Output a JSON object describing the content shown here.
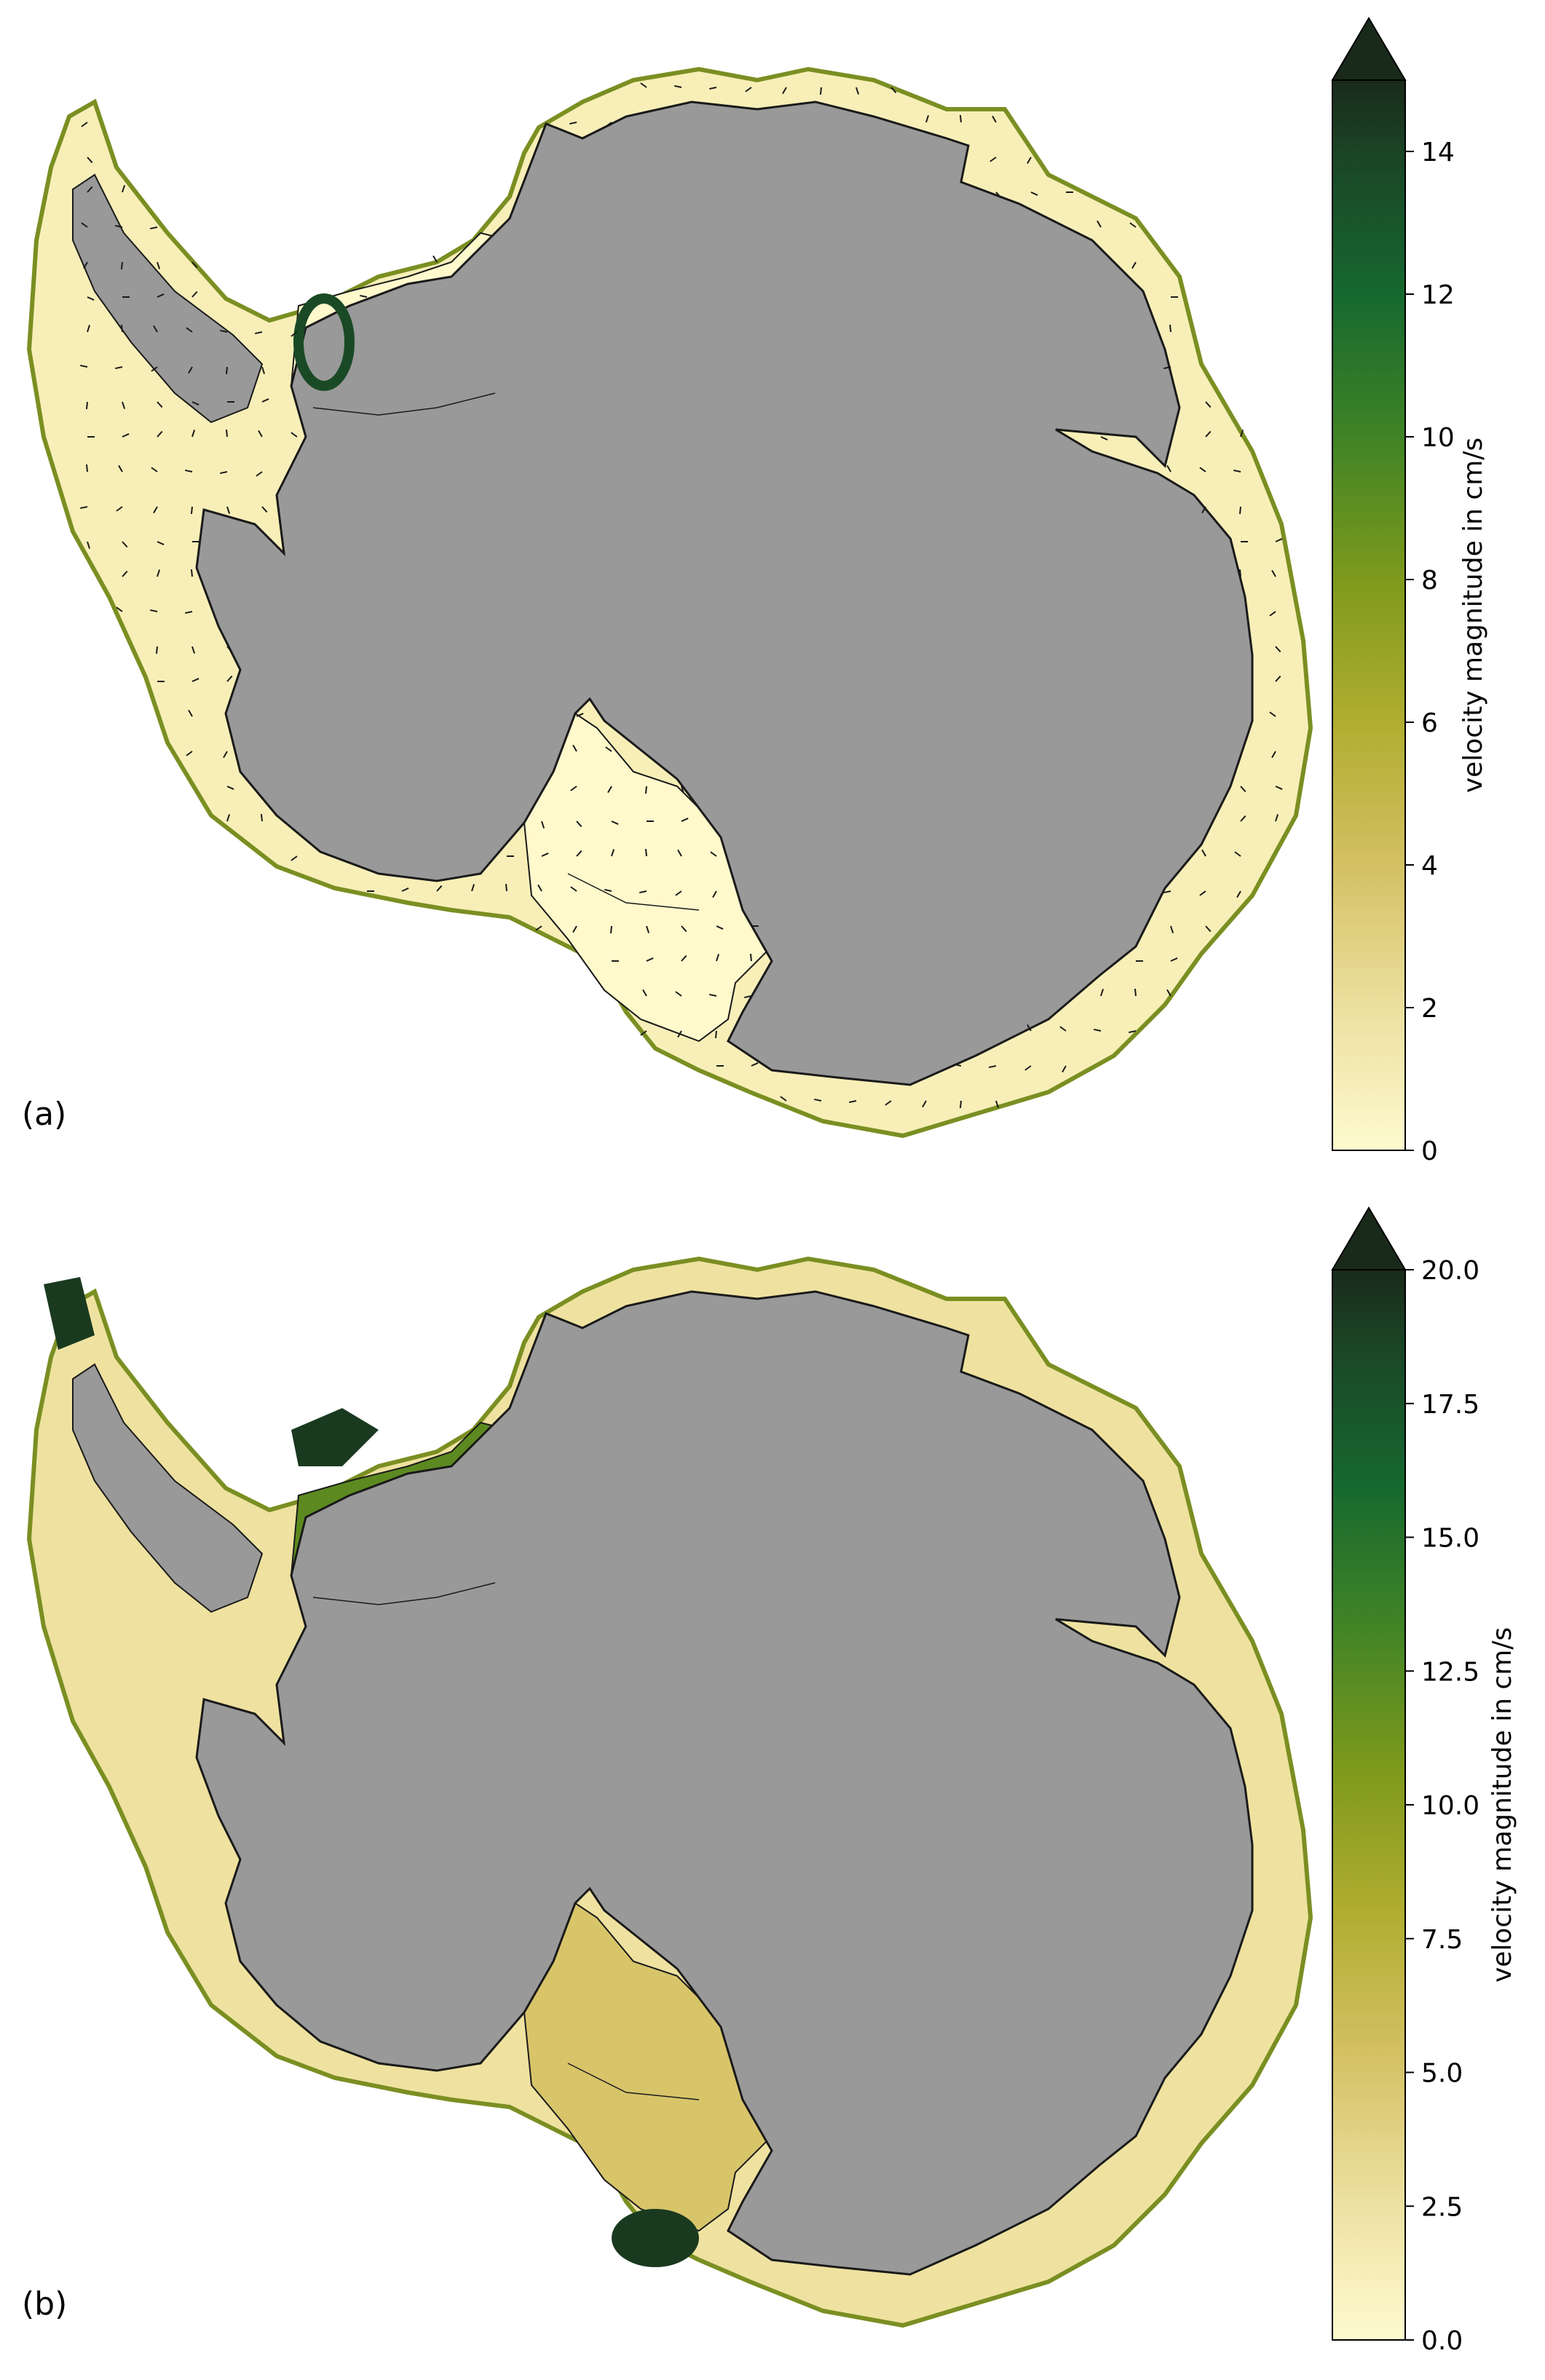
{
  "panels": [
    {
      "label": "(a)",
      "colorbar": {
        "label": "velocity magnitude in cm/s",
        "min": 0,
        "max": 15,
        "ticks": [
          "0",
          "2",
          "4",
          "6",
          "8",
          "10",
          "12",
          "14"
        ],
        "tick_values": [
          0,
          2,
          4,
          6,
          8,
          10,
          12,
          14
        ],
        "extend": "max"
      },
      "shows_quiver_arrows": true
    },
    {
      "label": "(b)",
      "colorbar": {
        "label": "velocity magnitude in cm/s",
        "min": 0,
        "max": 20,
        "ticks": [
          "0.0",
          "2.5",
          "5.0",
          "7.5",
          "10.0",
          "12.5",
          "15.0",
          "17.5",
          "20.0"
        ],
        "tick_values": [
          0,
          2.5,
          5,
          7.5,
          10,
          12.5,
          15,
          17.5,
          20
        ],
        "extend": "max"
      },
      "shows_quiver_arrows": false
    }
  ],
  "colors": {
    "land": "#999999",
    "cmap": [
      "#fffbd0",
      "#e8d98a",
      "#c7b443",
      "#8f9f1f",
      "#4f8a20",
      "#1a6a33",
      "#1a3d22",
      "#1a2618"
    ],
    "coastline": "#1a1a1a"
  }
}
